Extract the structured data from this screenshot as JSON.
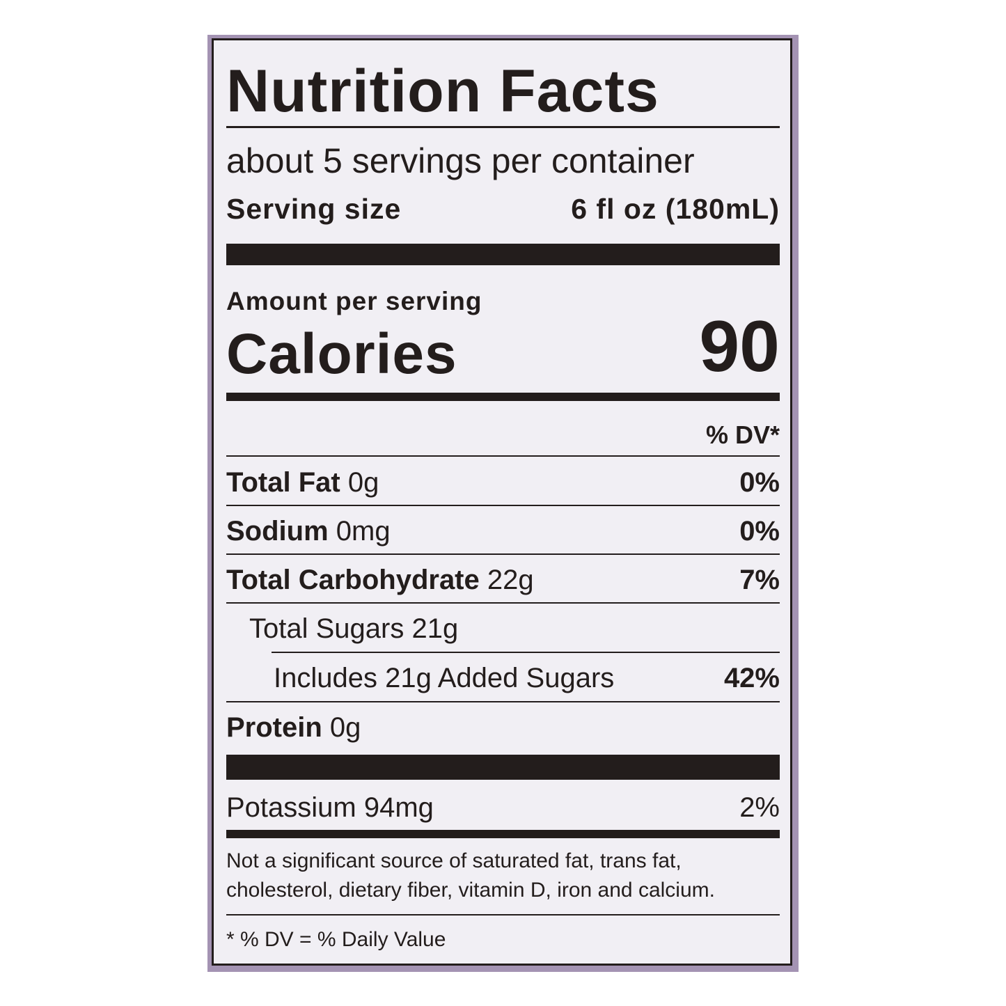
{
  "label": {
    "title": "Nutrition Facts",
    "servings": "about 5 servings per container",
    "serving_size_label": "Serving size",
    "serving_size_value": "6 fl oz (180mL)",
    "amount_per_serving": "Amount per serving",
    "calories_label": "Calories",
    "calories_value": "90",
    "dv_header": "% DV*",
    "rows": [
      {
        "name": "Total Fat",
        "amount": "0g",
        "dv": "0%"
      },
      {
        "name": "Sodium",
        "amount": "0mg",
        "dv": "0%"
      },
      {
        "name": "Total Carbohydrate",
        "amount": "22g",
        "dv": "7%"
      },
      {
        "name": "Total Sugars 21g",
        "amount": "",
        "dv": ""
      },
      {
        "name": "Includes 21g Added Sugars",
        "amount": "",
        "dv": "42%"
      },
      {
        "name": "Protein",
        "amount": "0g",
        "dv": ""
      }
    ],
    "potassium": {
      "name": "Potassium 94mg",
      "dv": "2%"
    },
    "footnote_line1": "Not a significant source of saturated fat, trans fat,",
    "footnote_line2": "cholesterol, dietary fiber, vitamin D, iron and calcium.",
    "dv_note": "* % DV = % Daily Value",
    "colors": {
      "frame": "#a493b3",
      "panel": "#f1eff4",
      "ink": "#231d1c"
    }
  }
}
